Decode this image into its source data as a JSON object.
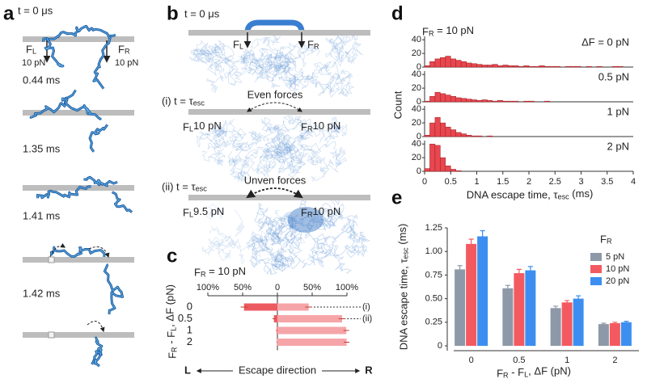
{
  "panel_labels": [
    "a",
    "b",
    "c",
    "d",
    "e"
  ],
  "panel_a": {
    "time_labels": [
      "t = 0 μs",
      "0.44 ms",
      "1.35 ms",
      "1.41 ms",
      "1.42 ms"
    ],
    "force_left": "FL",
    "force_left_value": "10 pN",
    "force_right": "FR",
    "force_right_value": "10 pN"
  },
  "panel_b": {
    "time_label": "t = 0 μs",
    "force_left": "FL",
    "force_right": "FR",
    "stages": [
      {
        "label": "(i) t = τesc",
        "title": "Even forces",
        "force_left": "FL10 pN",
        "force_right": "FR10 pN"
      },
      {
        "label": "(ii) t = τesc",
        "title": "Unven forces",
        "force_left": "FL9.5 pN",
        "force_right": "FR10 pN"
      }
    ]
  },
  "chart_data": [
    {
      "type": "bar",
      "orientation": "horizontal",
      "title": "FR = 10 pN",
      "ylabel": "FR - FL, ΔF (pN)",
      "xlabel": "Escape direction",
      "direction_labels": [
        "L",
        "R"
      ],
      "categories": [
        "0",
        "0.5",
        "1",
        "2"
      ],
      "series": [
        {
          "color": "#ec5a60",
          "values": [
            -48,
            -5,
            -1,
            -0.5
          ],
          "errors": [
            5,
            2,
            1,
            0.5
          ]
        },
        {
          "color": "#f5a5a8",
          "values": [
            45,
            93,
            99,
            99.5
          ],
          "errors": [
            5,
            5,
            4,
            4
          ]
        }
      ],
      "xlim": [
        -100,
        100
      ],
      "xticks": [
        {
          "value": -100,
          "label": "100%"
        },
        {
          "value": -50,
          "label": "50%"
        },
        0,
        {
          "value": 50,
          "label": "50%"
        },
        {
          "value": 100,
          "label": "100%"
        }
      ],
      "annotations": [
        "(i)",
        "(ii)"
      ]
    },
    {
      "type": "histogram",
      "title": "FR = 10 pN",
      "xlabel": "DNA escape time, τesc (ms)",
      "ylabel": "Count",
      "bins": [
        0,
        0.1,
        0.2,
        0.3,
        0.4,
        0.5,
        0.6,
        0.7,
        0.8,
        0.9,
        1,
        1.1,
        1.2,
        1.3,
        1.4,
        1.5,
        1.6,
        1.7,
        1.8,
        1.9,
        2,
        2.1,
        2.2,
        2.3,
        2.4,
        2.5,
        2.6,
        2.7,
        2.8,
        2.9,
        3,
        3.1,
        3.2,
        3.3,
        3.4,
        3.5,
        3.6,
        3.7,
        3.8,
        3.9,
        4
      ],
      "xlim": [
        0,
        4
      ],
      "xticks": [
        0,
        0.5,
        1,
        1.5,
        2,
        2.5,
        3,
        3.5,
        4
      ],
      "ylim": [
        0,
        45
      ],
      "yticks": [
        0,
        20,
        40
      ],
      "series": [
        {
          "name": "ΔF = 0 pN",
          "color": "#e8474f",
          "values": [
            2,
            8,
            12,
            14,
            16,
            12,
            10,
            8,
            6,
            5,
            4,
            3,
            3,
            4,
            2,
            3,
            2,
            2,
            1,
            2,
            1,
            1,
            2,
            1,
            1,
            1,
            0,
            1,
            1,
            1,
            0,
            1,
            0,
            1,
            0,
            0,
            1,
            1,
            0,
            0
          ]
        },
        {
          "name": "0.5 pN",
          "color": "#e8474f",
          "values": [
            1,
            8,
            14,
            12,
            10,
            8,
            6,
            5,
            4,
            3,
            2,
            3,
            2,
            1,
            2,
            1,
            1,
            1,
            0,
            1,
            1,
            0,
            0,
            1,
            0,
            0,
            0,
            0,
            0,
            0,
            0,
            0,
            0,
            0,
            0,
            0,
            0,
            0,
            0,
            0
          ]
        },
        {
          "name": "1 pN",
          "color": "#e8474f",
          "values": [
            2,
            20,
            28,
            20,
            14,
            10,
            6,
            4,
            2,
            1,
            1,
            0,
            1,
            0,
            0,
            0,
            0,
            0,
            0,
            0,
            0,
            0,
            0,
            0,
            0,
            0,
            0,
            0,
            0,
            0,
            0,
            0,
            0,
            0,
            0,
            0,
            0,
            0,
            0,
            0
          ]
        },
        {
          "name": "2 pN",
          "color": "#e8474f",
          "values": [
            4,
            40,
            38,
            20,
            8,
            3,
            1,
            0,
            0,
            0,
            0,
            0,
            0,
            0,
            0,
            0,
            0,
            0,
            0,
            0,
            0,
            0,
            0,
            0,
            0,
            0,
            0,
            0,
            0,
            0,
            0,
            0,
            0,
            0,
            0,
            0,
            0,
            0,
            0,
            0
          ]
        }
      ]
    },
    {
      "type": "bar",
      "ylabel": "DNA escape time, τesc (ms)",
      "xlabel": "FR - FL, ΔF (pN)",
      "categories": [
        "0",
        "0.5",
        "1",
        "2"
      ],
      "legend_title": "FR",
      "legend": "right",
      "ylim": [
        0,
        1.25
      ],
      "yticks": [
        0,
        0.25,
        {
          "value": 0.5,
          "label": "0.50"
        },
        0.75,
        {
          "value": 1,
          "label": "1.00"
        },
        1.25
      ],
      "series": [
        {
          "name": "5 pN",
          "color": "#8d99a8",
          "values": [
            0.81,
            0.61,
            0.4,
            0.23
          ],
          "errors": [
            0.04,
            0.03,
            0.02,
            0.01
          ]
        },
        {
          "name": "10 pN",
          "color": "#f35a60",
          "values": [
            1.08,
            0.77,
            0.46,
            0.24
          ],
          "errors": [
            0.05,
            0.04,
            0.02,
            0.01
          ]
        },
        {
          "name": "20 pN",
          "color": "#3c8ff0",
          "values": [
            1.16,
            0.8,
            0.5,
            0.25
          ],
          "errors": [
            0.06,
            0.04,
            0.03,
            0.01
          ]
        }
      ]
    }
  ]
}
